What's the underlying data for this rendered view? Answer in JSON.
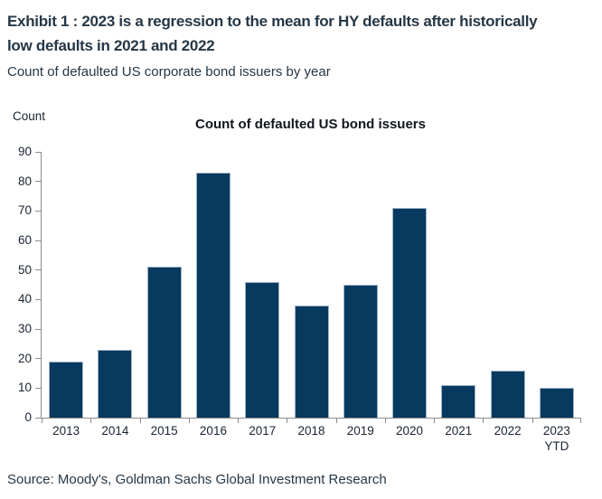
{
  "header": {
    "title_lines": [
      "Exhibit 1 : 2023 is a regression to the mean for HY defaults after historically",
      "low defaults in 2021 and 2022"
    ],
    "subtitle": "Count of defaulted US corporate bond issuers by year"
  },
  "chart_data": {
    "type": "bar",
    "title": "Count of defaulted US bond issuers",
    "ylabel": "Count",
    "xlabel": "",
    "categories": [
      "2013",
      "2014",
      "2015",
      "2016",
      "2017",
      "2018",
      "2019",
      "2020",
      "2021",
      "2022",
      "2023\nYTD"
    ],
    "values": [
      19,
      23,
      51,
      83,
      46,
      38,
      45,
      71,
      11,
      16,
      10
    ],
    "ylim": [
      0,
      90
    ],
    "ytick_step": 10,
    "grid": false,
    "legend": "none",
    "bar_color": "#08395e",
    "bar_border_color": "#9db3c7",
    "axis_color": "#8c8c8c"
  },
  "footer": {
    "source": "Source: Moody's, Goldman Sachs Global Investment Research"
  }
}
